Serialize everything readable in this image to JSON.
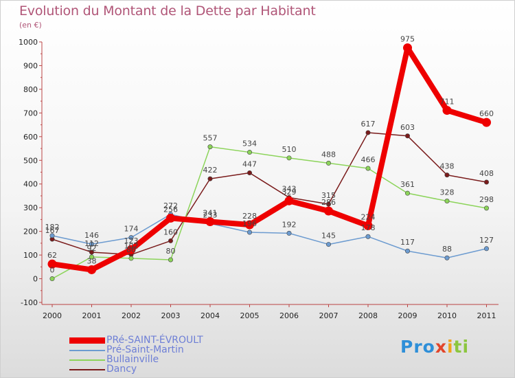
{
  "title": "Evolution du Montant de la Dette par Habitant",
  "unit": "(en €)",
  "logo": {
    "p1": "Pro",
    "p2": "x",
    "p3": "i",
    "p4": "ti"
  },
  "chart_data": {
    "type": "line",
    "x": [
      "2000",
      "2001",
      "2002",
      "2003",
      "2004",
      "2005",
      "2006",
      "2007",
      "2008",
      "2009",
      "2010",
      "2011"
    ],
    "ylim": [
      -100,
      1000
    ],
    "yticks": [
      -100,
      0,
      100,
      200,
      300,
      400,
      500,
      600,
      700,
      800,
      900,
      1000
    ],
    "grid": false,
    "legend_position": "bottom-left",
    "series": [
      {
        "name": "Dancy",
        "color": "#7a1b1b",
        "values": [
          167,
          112,
          102,
          160,
          422,
          447,
          343,
          315,
          617,
          603,
          438,
          408
        ]
      },
      {
        "name": "Bullainville",
        "color": "#8cd45a",
        "values": [
          0,
          92,
          86,
          80,
          557,
          534,
          510,
          488,
          466,
          361,
          328,
          298
        ]
      },
      {
        "name": "Pré-Saint-Martin",
        "color": "#6c9bd0",
        "values": [
          182,
          146,
          174,
          272,
          233,
          196,
          192,
          145,
          178,
          117,
          88,
          127
        ]
      },
      {
        "name": "PRé-SAINT-ÉVROULT",
        "color": "#ee0000",
        "values": [
          62,
          38,
          123,
          256,
          241,
          228,
          329,
          286,
          224,
          975,
          711,
          660
        ]
      }
    ],
    "data_labels": [
      {
        "series": "Dancy",
        "labels": [
          "167",
          "112",
          "102",
          "160",
          "422",
          "447",
          "343",
          "315",
          "617",
          "603",
          "438",
          "408"
        ]
      },
      {
        "series": "Bullainville",
        "labels": [
          "0",
          "92",
          "86",
          "80",
          "557",
          "534",
          "510",
          "488",
          "466",
          "361",
          "328",
          "298"
        ]
      },
      {
        "series": "Pré-Saint-Martin",
        "labels": [
          "182",
          "146",
          "174",
          "272",
          "233",
          "196",
          "192",
          "145",
          "178",
          "117",
          "88",
          "127"
        ]
      },
      {
        "series": "PRé-SAINT-ÉVROULT",
        "labels": [
          "62",
          "38",
          "123",
          "256",
          "241",
          "228",
          "329",
          "286",
          "224",
          "975",
          "711",
          "660"
        ]
      }
    ]
  }
}
